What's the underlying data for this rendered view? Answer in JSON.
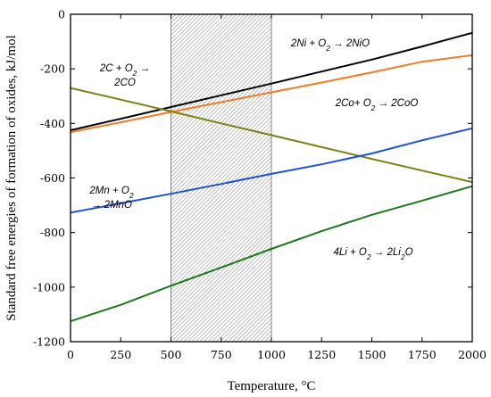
{
  "chart_data": {
    "type": "line",
    "xlabel": "Temperature, °C",
    "ylabel": "Standard free energies of formation of oxides, kJ/mol",
    "xlim": [
      0,
      2000
    ],
    "ylim": [
      -1200,
      0
    ],
    "xticks": [
      0,
      250,
      500,
      750,
      1000,
      1250,
      1500,
      1750,
      2000
    ],
    "yticks": [
      0,
      -200,
      -400,
      -600,
      -800,
      -1000,
      -1200
    ],
    "grid": false,
    "shaded_region": {
      "x": [
        500,
        1000
      ],
      "pattern": "hatched"
    },
    "series": [
      {
        "name": "2Ni + O2 → 2NiO",
        "color": "#000000",
        "x": [
          0,
          250,
          500,
          750,
          1000,
          1250,
          1500,
          1750,
          2000
        ],
        "y": [
          -425,
          -383,
          -340,
          -297,
          -254,
          -210,
          -166,
          -118,
          -68
        ]
      },
      {
        "name": "2Co+ O2 → 2CoO",
        "color": "#f07c28",
        "x": [
          0,
          250,
          500,
          750,
          1000,
          1250,
          1500,
          1750,
          2000
        ],
        "y": [
          -432,
          -396,
          -358,
          -322,
          -286,
          -250,
          -213,
          -174,
          -150
        ]
      },
      {
        "name": "2C + O2 → 2CO",
        "color": "#7f7f16",
        "x": [
          0,
          250,
          500,
          750,
          1000,
          1250,
          1500,
          1750,
          2000
        ],
        "y": [
          -270,
          -313,
          -356,
          -400,
          -443,
          -487,
          -530,
          -573,
          -615
        ]
      },
      {
        "name": "2Mn + O2 → 2MnO",
        "color": "#1f4fd8",
        "x": [
          0,
          250,
          500,
          750,
          1000,
          1250,
          1500,
          1750,
          2000
        ],
        "y": [
          -727,
          -693,
          -658,
          -622,
          -585,
          -550,
          -510,
          -462,
          -418
        ]
      },
      {
        "name": "4Li + O2 → 2Li2O",
        "color": "#1a7a1a",
        "x": [
          0,
          250,
          500,
          750,
          1000,
          1250,
          1500,
          1750,
          2000
        ],
        "y": [
          -1125,
          -1065,
          -995,
          -928,
          -860,
          -795,
          -735,
          -683,
          -630
        ]
      }
    ],
    "annotations": [
      {
        "id": "ni",
        "parts": [
          [
            "2Ni + O",
            "n"
          ],
          [
            "2",
            "sub"
          ],
          [
            " → 2NiO",
            "n"
          ]
        ]
      },
      {
        "id": "c",
        "parts": [
          [
            "2C + O",
            "n"
          ],
          [
            "2",
            "sub"
          ],
          [
            " →",
            "n"
          ]
        ],
        "line2": "2CO"
      },
      {
        "id": "co",
        "parts": [
          [
            "2Co+ O",
            "n"
          ],
          [
            "2",
            "sub"
          ],
          [
            " → 2CoO",
            "n"
          ]
        ]
      },
      {
        "id": "mn",
        "parts": [
          [
            "2Mn + O",
            "n"
          ],
          [
            "2",
            "sub"
          ]
        ],
        "line2": "→ 2MnO"
      },
      {
        "id": "li",
        "parts": [
          [
            "4Li + O",
            "n"
          ],
          [
            "2",
            "sub"
          ],
          [
            " → 2Li",
            "n"
          ],
          [
            "2",
            "sub"
          ],
          [
            "O",
            "n"
          ]
        ]
      }
    ]
  }
}
